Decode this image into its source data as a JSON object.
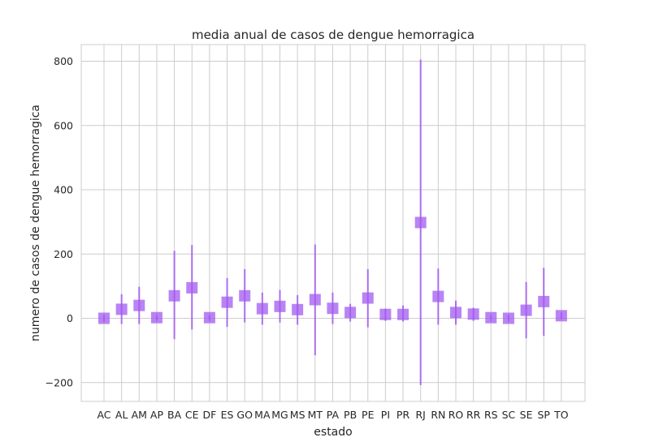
{
  "chart_data": {
    "type": "scatter",
    "title": "media anual de casos de dengue hemorragica",
    "xlabel": "estado",
    "ylabel": "numero de casos de dengue hemorragica",
    "ylim": [
      -260,
      860
    ],
    "yticks": [
      800,
      600,
      400,
      200,
      0,
      -200
    ],
    "ytick_labels": [
      "800",
      "600",
      "400",
      "200",
      "0",
      "−200"
    ],
    "grid": true,
    "marker": "square",
    "color": "#a259f0",
    "categories": [
      "AC",
      "AL",
      "AM",
      "AP",
      "BA",
      "CE",
      "DF",
      "ES",
      "GO",
      "MA",
      "MG",
      "MS",
      "MT",
      "PA",
      "PB",
      "PE",
      "PI",
      "PR",
      "RJ",
      "RN",
      "RO",
      "RR",
      "RS",
      "SC",
      "SE",
      "SP",
      "TO"
    ],
    "values": [
      0,
      28,
      40,
      2,
      70,
      95,
      2,
      50,
      70,
      30,
      37,
      27,
      58,
      31,
      18,
      63,
      12,
      12,
      298,
      68,
      18,
      13,
      2,
      0,
      25,
      52,
      8
    ],
    "err_low": [
      -10,
      -18,
      -18,
      -8,
      -65,
      -35,
      -8,
      -27,
      -13,
      -20,
      -13,
      -20,
      -115,
      -18,
      -10,
      -28,
      -8,
      -10,
      -208,
      -20,
      -20,
      -8,
      -8,
      -10,
      -62,
      -55,
      -3
    ],
    "err_high": [
      10,
      75,
      98,
      10,
      210,
      228,
      10,
      125,
      153,
      80,
      88,
      72,
      230,
      80,
      45,
      153,
      30,
      40,
      805,
      155,
      55,
      33,
      10,
      10,
      113,
      157,
      18
    ]
  }
}
